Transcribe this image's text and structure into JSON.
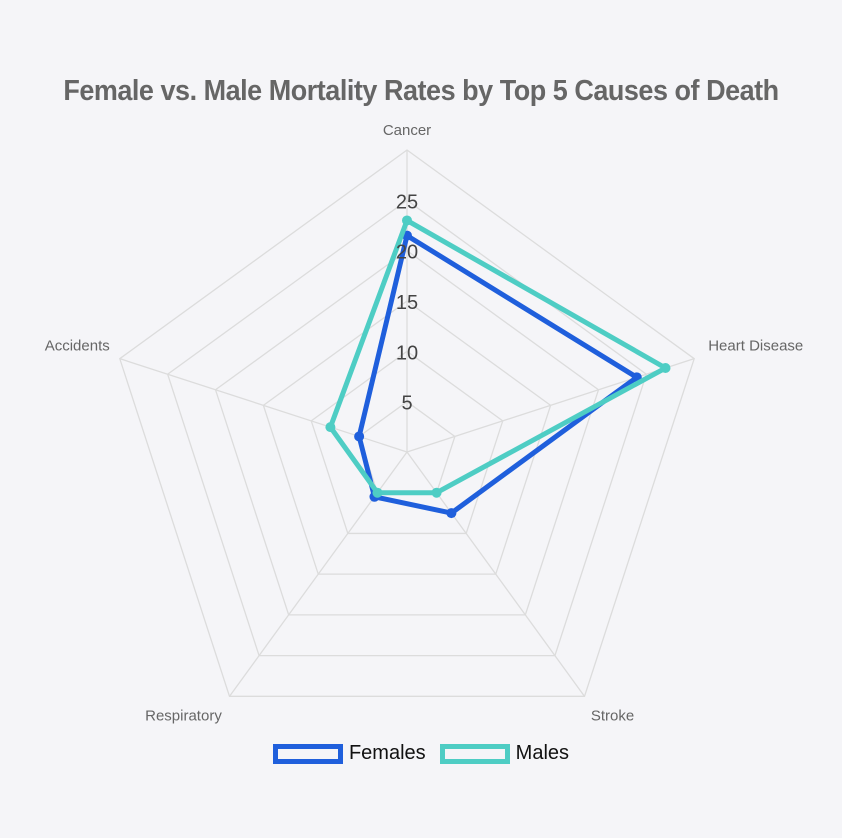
{
  "chart_data": {
    "type": "radar",
    "title": "Female vs. Male Mortality Rates by Top 5 Causes of Death",
    "categories": [
      "Cancer",
      "Heart Disease",
      "Stroke",
      "Respiratory",
      "Accidents"
    ],
    "ticks": [
      5,
      10,
      15,
      20,
      25
    ],
    "rlim": [
      0,
      30
    ],
    "grid": true,
    "legend_position": "bottom",
    "series": [
      {
        "name": "Females",
        "values": [
          21.5,
          24.0,
          7.5,
          5.5,
          5.0
        ],
        "color": "#1f5fdc"
      },
      {
        "name": "Males",
        "values": [
          23.0,
          27.0,
          5.0,
          5.0,
          8.0
        ],
        "color": "#4ecdc4"
      }
    ]
  }
}
